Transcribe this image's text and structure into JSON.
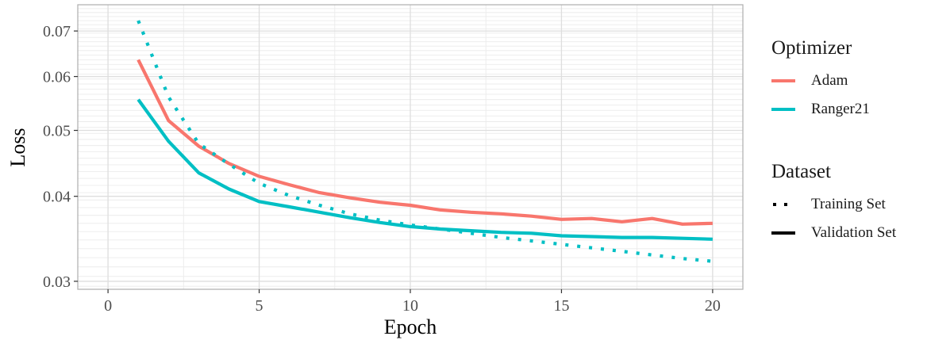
{
  "chart_data": {
    "type": "line",
    "xlabel": "Epoch",
    "ylabel": "Loss",
    "x_ticks": [
      0,
      5,
      10,
      15,
      20
    ],
    "y_ticks": [
      0.03,
      0.04,
      0.05,
      0.06,
      0.07
    ],
    "y_tick_labels": [
      "0.03",
      "0.04",
      "0.05",
      "0.06",
      "0.07"
    ],
    "xlim": [
      -1,
      21
    ],
    "ylim": [
      0.0292,
      0.0765
    ],
    "y_scale": "log",
    "grid": true,
    "colors": {
      "Adam": "#F8766D",
      "Ranger21": "#00BFC4"
    },
    "x": [
      1,
      2,
      3,
      4,
      5,
      6,
      7,
      8,
      9,
      10,
      11,
      12,
      13,
      14,
      15,
      16,
      17,
      18,
      19,
      20
    ],
    "series": [
      {
        "optimizer": "Adam",
        "dataset": "Validation Set",
        "values": [
          0.0635,
          0.0517,
          0.0474,
          0.0447,
          0.0428,
          0.0416,
          0.0405,
          0.0398,
          0.0392,
          0.0388,
          0.0382,
          0.0379,
          0.0377,
          0.0374,
          0.037,
          0.0371,
          0.0367,
          0.0371,
          0.0364,
          0.0365
        ]
      },
      {
        "optimizer": "Ranger21",
        "dataset": "Validation Set",
        "values": [
          0.0555,
          0.0482,
          0.0433,
          0.041,
          0.0393,
          0.0386,
          0.0379,
          0.0372,
          0.0366,
          0.0361,
          0.0358,
          0.0356,
          0.0354,
          0.0353,
          0.035,
          0.0349,
          0.0348,
          0.0348,
          0.0347,
          0.0346
        ]
      },
      {
        "optimizer": "Ranger21",
        "dataset": "Training Set",
        "values": [
          0.0725,
          0.056,
          0.0478,
          0.0446,
          0.0418,
          0.0401,
          0.0388,
          0.0377,
          0.0369,
          0.0363,
          0.0358,
          0.0353,
          0.0348,
          0.0344,
          0.034,
          0.0336,
          0.0332,
          0.0328,
          0.0324,
          0.0321
        ]
      }
    ],
    "legend": {
      "position": "right",
      "optimizer_title": "Optimizer",
      "optimizer_items": [
        "Adam",
        "Ranger21"
      ],
      "dataset_title": "Dataset",
      "dataset_items": [
        "Training Set",
        "Validation Set"
      ]
    }
  }
}
